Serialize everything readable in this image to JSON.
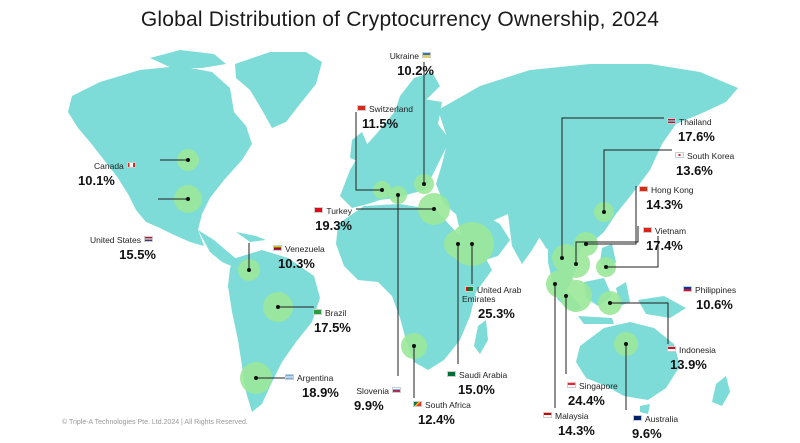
{
  "title": "Global Distribution of Cryptocurrency Ownership, 2024",
  "copyright": "© Triple-A Technologies Pte. Ltd.2024 | All Rights Reserved.",
  "colors": {
    "land": "#7ddbd8",
    "bubble": "#9be89a",
    "line": "#1f1f1f"
  },
  "countries": [
    {
      "id": "ukraine",
      "name": "Ukraine",
      "value": "10.2%",
      "flag": "ua"
    },
    {
      "id": "switzerland",
      "name": "Switzerland",
      "value": "11.5%",
      "flag": "ch"
    },
    {
      "id": "canada",
      "name": "Canada",
      "value": "10.1%",
      "flag": "ca"
    },
    {
      "id": "turkey",
      "name": "Turkey",
      "value": "19.3%",
      "flag": "tr"
    },
    {
      "id": "united-states",
      "name": "United States",
      "value": "15.5%",
      "flag": "us"
    },
    {
      "id": "venezuela",
      "name": "Venezuela",
      "value": "10.3%",
      "flag": "ve"
    },
    {
      "id": "brazil",
      "name": "Brazil",
      "value": "17.5%",
      "flag": "br"
    },
    {
      "id": "argentina",
      "name": "Argentina",
      "value": "18.9%",
      "flag": "ar"
    },
    {
      "id": "slovenia",
      "name": "Slovenia",
      "value": "9.9%",
      "flag": "si"
    },
    {
      "id": "south-africa",
      "name": "South Africa",
      "value": "12.4%",
      "flag": "za"
    },
    {
      "id": "saudi-arabia",
      "name": "Saudi Arabia",
      "value": "15.0%",
      "flag": "sa"
    },
    {
      "id": "uae",
      "name": "United Arab Emirates",
      "value": "25.3%",
      "flag": "ae"
    },
    {
      "id": "malaysia",
      "name": "Malaysia",
      "value": "14.3%",
      "flag": "my"
    },
    {
      "id": "singapore",
      "name": "Singapore",
      "value": "24.4%",
      "flag": "sg"
    },
    {
      "id": "australia",
      "name": "Australia",
      "value": "9.6%",
      "flag": "au"
    },
    {
      "id": "indonesia",
      "name": "Indonesia",
      "value": "13.9%",
      "flag": "id"
    },
    {
      "id": "philippines",
      "name": "Philippines",
      "value": "10.6%",
      "flag": "ph"
    },
    {
      "id": "vietnam",
      "name": "Vietnam",
      "value": "17.4%",
      "flag": "vn"
    },
    {
      "id": "hong-kong",
      "name": "Hong Kong",
      "value": "14.3%",
      "flag": "hk"
    },
    {
      "id": "south-korea",
      "name": "South Korea",
      "value": "13.6%",
      "flag": "kr"
    },
    {
      "id": "thailand",
      "name": "Thailand",
      "value": "17.6%",
      "flag": "th"
    }
  ]
}
